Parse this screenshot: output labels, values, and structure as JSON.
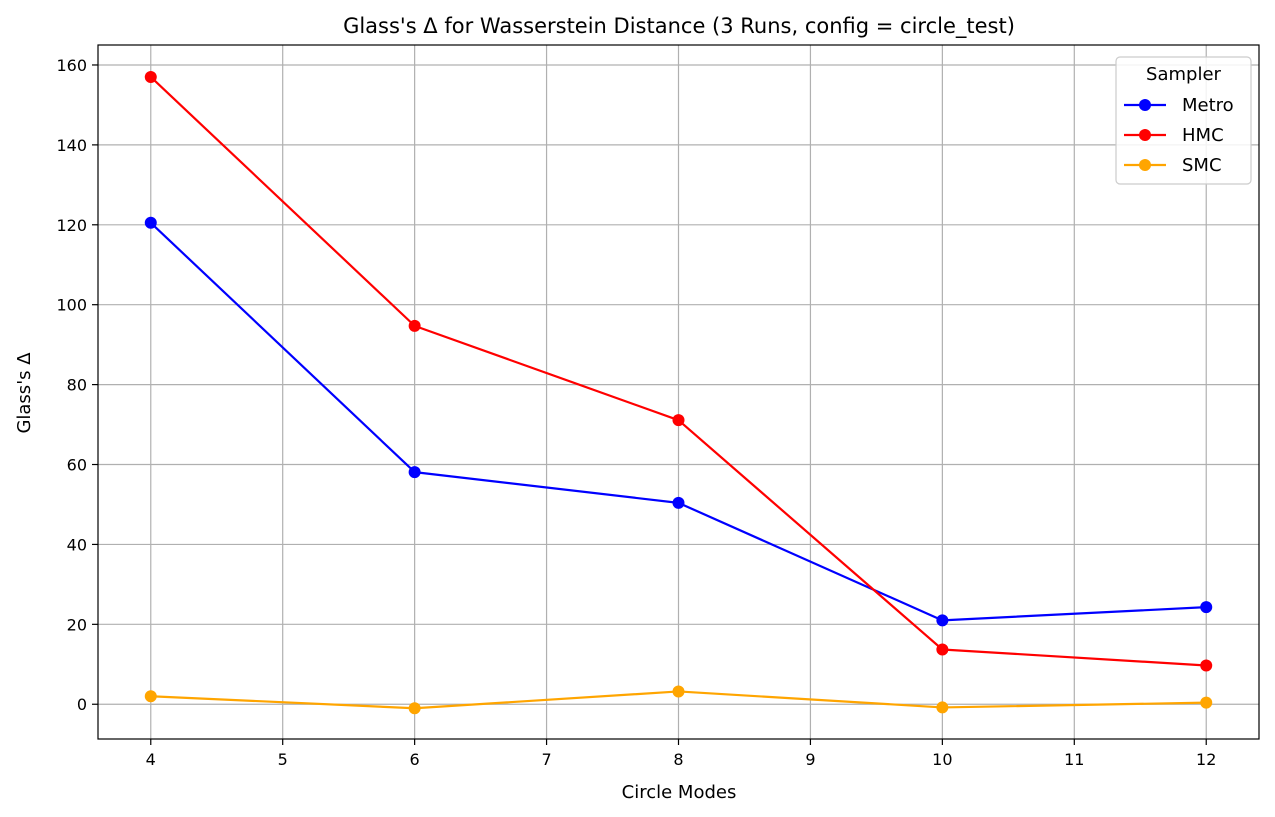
{
  "chart_data": {
    "type": "line",
    "title": "Glass's Δ for Wasserstein Distance (3 Runs, config = circle_test)",
    "xlabel": "Circle Modes",
    "ylabel": "Glass's Δ",
    "x": [
      4,
      6,
      8,
      10,
      12
    ],
    "xlim": [
      3.6,
      12.4
    ],
    "ylim": [
      -8.7,
      165.0
    ],
    "xticks": [
      4,
      5,
      6,
      7,
      8,
      9,
      10,
      11,
      12
    ],
    "yticks": [
      0,
      20,
      40,
      60,
      80,
      100,
      120,
      140,
      160
    ],
    "grid": true,
    "legend": {
      "title": "Sampler",
      "position": "top-right"
    },
    "series": [
      {
        "name": "Metro",
        "color": "#0000ff",
        "values": [
          120.5,
          58.1,
          50.4,
          21.0,
          24.3
        ]
      },
      {
        "name": "HMC",
        "color": "#ff0000",
        "values": [
          157.0,
          94.7,
          71.1,
          13.7,
          9.7
        ]
      },
      {
        "name": "SMC",
        "color": "#ffa500",
        "values": [
          2.0,
          -1.0,
          3.2,
          -0.8,
          0.4
        ]
      }
    ]
  }
}
